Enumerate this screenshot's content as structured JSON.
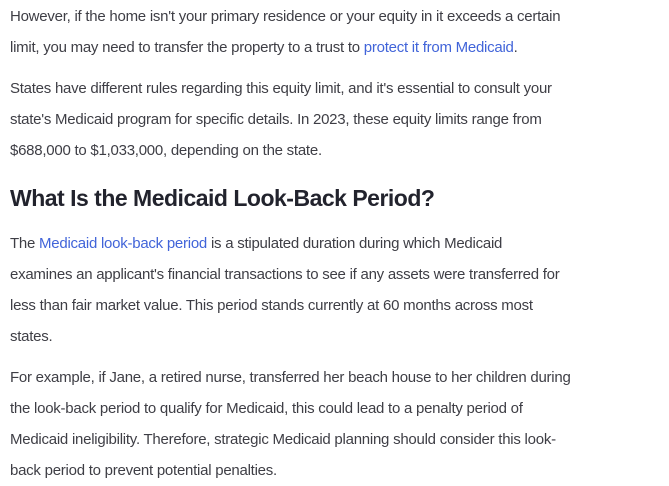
{
  "article": {
    "colors": {
      "background": "#ffffff",
      "body_text": "#3e3e45",
      "heading": "#22232d",
      "link": "#4164d9"
    },
    "paragraph1": {
      "line1": "However, if the home isn't your primary residence or your equity in it exceeds a certain",
      "line2_pre": "limit, you may need to transfer the property to a trust to ",
      "line2_link": "protect it from Medicaid",
      "line2_end": "."
    },
    "paragraph2": {
      "line1": "States have different rules regarding this equity limit, and it's essential to consult your",
      "line2": "state's Medicaid program for specific details. In 2023, these equity limits range from",
      "line3": "$688,000 to $1,033,000, depending on the state."
    },
    "heading": "What Is the Medicaid Look-Back Period?",
    "paragraph3": {
      "line1_pre": "The ",
      "line1_link": "Medicaid look-back period",
      "line1_post": " is a stipulated duration during which Medicaid",
      "line2": "examines an applicant's financial transactions to see if any assets were transferred for",
      "line3": "less than fair market value. This period stands currently at 60 months across most",
      "line4": "states."
    },
    "paragraph4": {
      "line1": "For example, if Jane, a retired nurse, transferred her beach house to her children during",
      "line2": "the look-back period to qualify for Medicaid, this could lead to a penalty period of",
      "line3": "Medicaid ineligibility. Therefore, strategic Medicaid planning should consider this look-",
      "line4": "back period to prevent potential penalties."
    }
  }
}
